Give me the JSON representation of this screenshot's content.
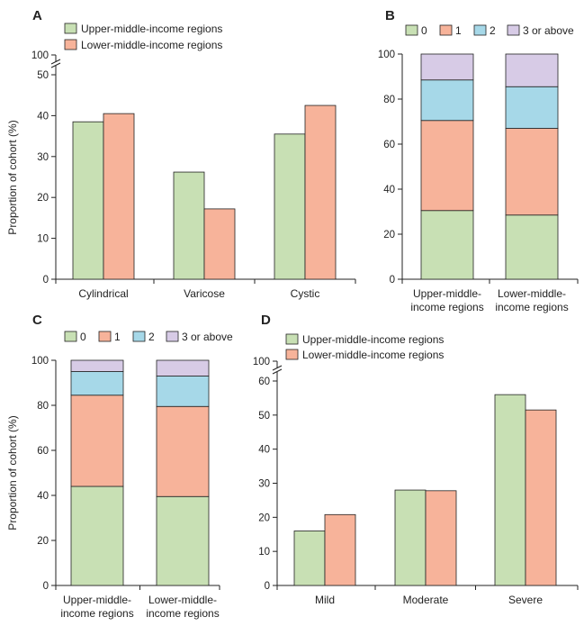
{
  "colors": {
    "upper": "#c8e0b4",
    "lower": "#f7b39a",
    "seg0": "#c8e0b4",
    "seg1": "#f7b39a",
    "seg2": "#a6d8e8",
    "seg3": "#d7cbe6",
    "axis": "#222222"
  },
  "chart_data": [
    {
      "id": "A",
      "panel_label": "A",
      "type": "bar",
      "ylabel": "Proportion of cohort (%)",
      "ylim": [
        0,
        50
      ],
      "yticks": [
        "0",
        "10",
        "20",
        "30",
        "40",
        "50"
      ],
      "axis_break_top": "100",
      "categories": [
        "Cylindrical",
        "Varicose",
        "Cystic"
      ],
      "series": [
        {
          "name": "Upper-middle-income regions",
          "color_key": "upper",
          "values": [
            38.5,
            26.2,
            35.5
          ]
        },
        {
          "name": "Lower-middle-income regions",
          "color_key": "lower",
          "values": [
            40.5,
            17.2,
            42.5
          ]
        }
      ]
    },
    {
      "id": "B",
      "panel_label": "B",
      "type": "stacked-bar",
      "ylabel": "",
      "ylim": [
        0,
        100
      ],
      "yticks": [
        "0",
        "20",
        "40",
        "60",
        "80",
        "100"
      ],
      "categories": [
        "Upper-middle-\nincome regions",
        "Lower-middle-\nincome regions"
      ],
      "series": [
        {
          "name": "0",
          "color_key": "seg0",
          "values": [
            30.5,
            28.5
          ]
        },
        {
          "name": "1",
          "color_key": "seg1",
          "values": [
            40.0,
            38.5
          ]
        },
        {
          "name": "2",
          "color_key": "seg2",
          "values": [
            18.0,
            18.5
          ]
        },
        {
          "name": "3 or above",
          "color_key": "seg3",
          "values": [
            11.5,
            14.5
          ]
        }
      ]
    },
    {
      "id": "C",
      "panel_label": "C",
      "type": "stacked-bar",
      "ylabel": "Proportion of cohort (%)",
      "ylim": [
        0,
        100
      ],
      "yticks": [
        "0",
        "20",
        "40",
        "60",
        "80",
        "100"
      ],
      "categories": [
        "Upper-middle-\nincome regions",
        "Lower-middle-\nincome regions"
      ],
      "series": [
        {
          "name": "0",
          "color_key": "seg0",
          "values": [
            44.0,
            39.5
          ]
        },
        {
          "name": "1",
          "color_key": "seg1",
          "values": [
            40.5,
            40.0
          ]
        },
        {
          "name": "2",
          "color_key": "seg2",
          "values": [
            10.5,
            13.5
          ]
        },
        {
          "name": "3 or above",
          "color_key": "seg3",
          "values": [
            5.0,
            7.0
          ]
        }
      ]
    },
    {
      "id": "D",
      "panel_label": "D",
      "type": "bar",
      "ylabel": "",
      "ylim": [
        0,
        60
      ],
      "yticks": [
        "0",
        "10",
        "20",
        "30",
        "40",
        "50",
        "60"
      ],
      "axis_break_top": "100",
      "categories": [
        "Mild",
        "Moderate",
        "Severe"
      ],
      "series": [
        {
          "name": "Upper-middle-income regions",
          "color_key": "upper",
          "values": [
            16.0,
            28.0,
            56.0
          ]
        },
        {
          "name": "Lower-middle-income regions",
          "color_key": "lower",
          "values": [
            20.8,
            27.8,
            51.5
          ]
        }
      ]
    }
  ]
}
